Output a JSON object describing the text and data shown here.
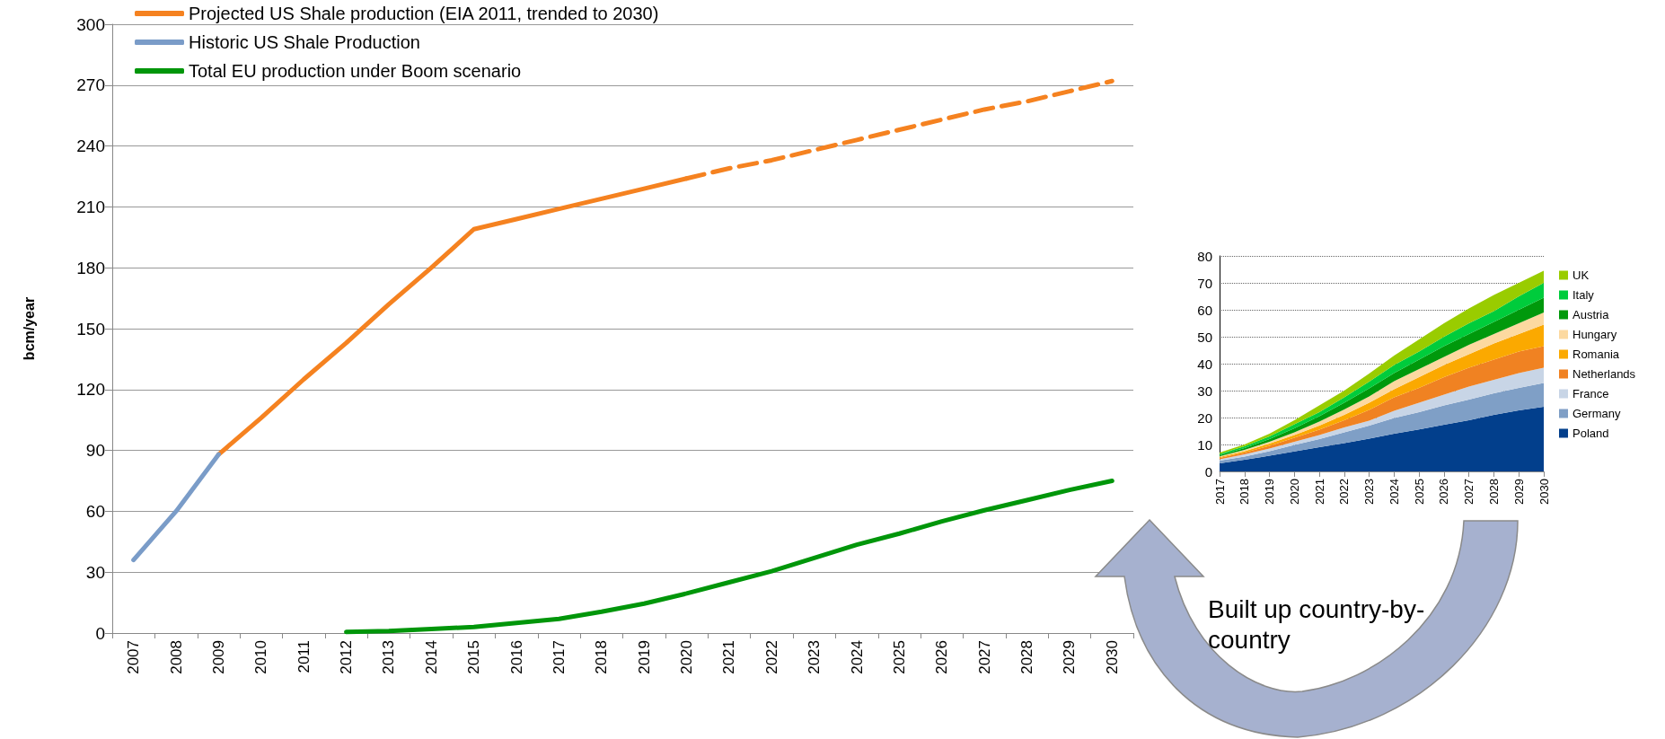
{
  "chart_data": [
    {
      "type": "line",
      "ylabel": "bcm/year",
      "categories": [
        "2007",
        "2008",
        "2009",
        "2010",
        "2011",
        "2012",
        "2013",
        "2014",
        "2015",
        "2016",
        "2017",
        "2018",
        "2019",
        "2020",
        "2021",
        "2022",
        "2023",
        "2024",
        "2025",
        "2026",
        "2027",
        "2028",
        "2029",
        "2030"
      ],
      "ylim": [
        0,
        300
      ],
      "yticks": [
        0,
        30,
        60,
        90,
        120,
        150,
        180,
        210,
        240,
        270,
        300
      ],
      "grid": "y",
      "legend": "top left",
      "marker": "none",
      "line_style": "solid",
      "series": [
        {
          "name": "Projected US Shale production (EIA 2011, trended to 2030)",
          "color": "#f58220",
          "values": [
            null,
            null,
            88,
            106,
            125,
            143,
            162,
            180,
            199,
            204,
            209,
            214,
            219,
            224,
            null,
            null,
            null,
            null,
            null,
            null,
            null,
            null,
            null,
            null
          ]
        },
        {
          "color": "#f58220",
          "line_style": "dashed",
          "values": [
            null,
            null,
            null,
            null,
            null,
            null,
            null,
            null,
            null,
            null,
            null,
            null,
            null,
            224,
            229,
            233,
            238,
            243,
            248,
            253,
            258,
            262,
            267,
            272
          ]
        },
        {
          "name": "Historic US Shale Production",
          "color": "#7a9cc8",
          "values": [
            36,
            60,
            88,
            null,
            null,
            null,
            null,
            null,
            null,
            null,
            null,
            null,
            null,
            null,
            null,
            null,
            null,
            null,
            null,
            null,
            null,
            null,
            null,
            null
          ]
        },
        {
          "name": "Total EU production under Boom scenario",
          "color": "#00960a",
          "values": [
            null,
            null,
            null,
            null,
            null,
            0.5,
            1,
            2,
            3,
            5,
            7,
            10.5,
            14.5,
            19.5,
            25,
            30.5,
            37,
            43.5,
            49,
            55,
            60.5,
            65.5,
            70.5,
            75
          ]
        }
      ]
    },
    {
      "type": "area",
      "stacked": true,
      "categories": [
        "2017",
        "2018",
        "2019",
        "2020",
        "2021",
        "2022",
        "2023",
        "2024",
        "2025",
        "2026",
        "2027",
        "2028",
        "2029",
        "2030"
      ],
      "ylim": [
        0,
        80
      ],
      "yticks": [
        0,
        10,
        20,
        30,
        40,
        50,
        60,
        70,
        80
      ],
      "grid": "y",
      "legend": "right",
      "marker": "none",
      "annotations": [
        "Built up country-by-country"
      ],
      "series": [
        {
          "name": "Poland",
          "color": "#023f8c",
          "values": [
            3,
            4.3,
            5.8,
            7.4,
            9,
            10.5,
            12.2,
            14,
            15.6,
            17.3,
            19,
            21,
            22.7,
            24
          ]
        },
        {
          "name": "Germany",
          "color": "#7f9fc6",
          "values": [
            1,
            1.2,
            1.7,
            2.4,
            3,
            4,
            4.8,
            5.8,
            6.4,
            7.2,
            7.7,
            8,
            8.3,
            8.8
          ]
        },
        {
          "name": "France",
          "color": "#c8d5e6",
          "values": [
            0.5,
            0.8,
            1,
            1.2,
            1.5,
            1.8,
            1.8,
            2.7,
            3.5,
            4,
            4.8,
            5,
            5.5,
            5.7
          ]
        },
        {
          "name": "Netherlands",
          "color": "#f08222",
          "values": [
            0.5,
            0.7,
            1,
            1.5,
            2,
            2.7,
            4,
            5,
            5.5,
            6.5,
            7,
            7.5,
            8,
            8
          ]
        },
        {
          "name": "Romania",
          "color": "#fba900",
          "values": [
            0.3,
            0.5,
            0.8,
            1,
            1.5,
            2,
            2.7,
            3,
            4,
            4.5,
            5,
            6,
            6.5,
            8
          ]
        },
        {
          "name": "Hungary",
          "color": "#fcd9a0",
          "values": [
            0.3,
            0.5,
            0.7,
            1,
            1.5,
            2,
            2.3,
            3,
            3,
            3,
            3.5,
            3.5,
            4,
            4.5
          ]
        },
        {
          "name": "Austria",
          "color": "#00990c",
          "values": [
            0.4,
            0.7,
            1,
            1.5,
            2,
            2.5,
            3,
            3,
            3.5,
            4,
            4,
            4.5,
            5,
            5.5
          ]
        },
        {
          "name": "Italy",
          "color": "#00cc3c",
          "values": [
            0.5,
            0.6,
            1,
            1.5,
            1.5,
            2,
            2.5,
            3,
            3,
            3.5,
            4,
            4,
            5,
            5.5
          ]
        },
        {
          "name": "UK",
          "color": "#99cc00",
          "values": [
            0.5,
            0.7,
            1,
            1.5,
            2.5,
            2.5,
            3,
            3.5,
            4.5,
            5,
            5.5,
            6,
            5,
            4.5
          ]
        }
      ]
    }
  ]
}
